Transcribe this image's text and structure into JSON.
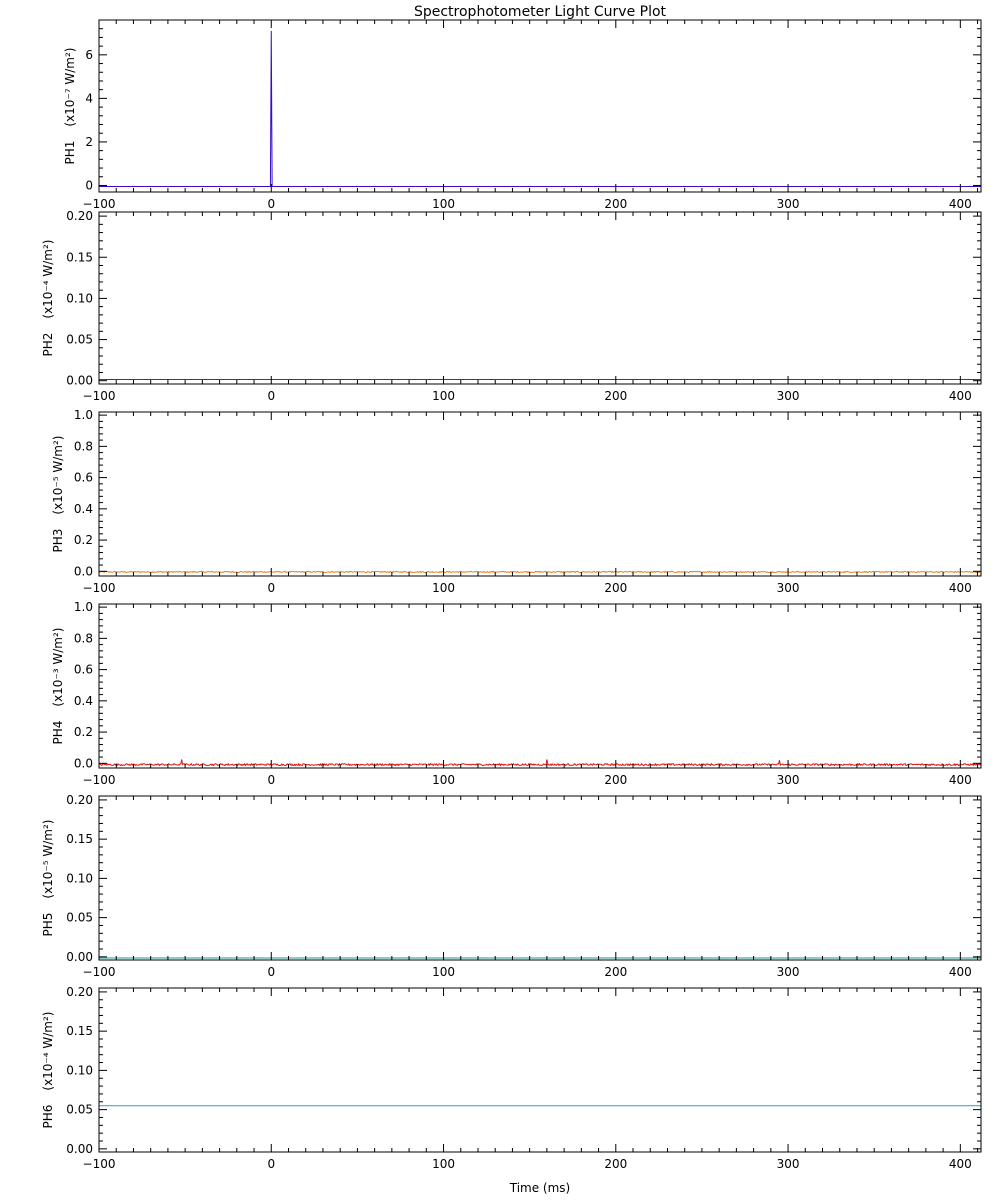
{
  "chart_data": [
    {
      "type": "line",
      "title": "Spectrophotometer Light Curve Plot",
      "panel": "PH1",
      "ylabel_name": "PH1",
      "ylabel_unit": "(x10⁻⁷ W/m²)",
      "xlabel": "",
      "xlim": [
        -100,
        412
      ],
      "ylim": [
        -0.3,
        7.6
      ],
      "x_ticks": [
        -100,
        0,
        100,
        200,
        300,
        400
      ],
      "x_tick_labels": [
        "−100",
        "0",
        "100",
        "200",
        "300",
        "400"
      ],
      "y_ticks": [
        0,
        2,
        4,
        6
      ],
      "y_tick_labels": [
        "0",
        "2",
        "4",
        "6"
      ],
      "color": "#3a0ac8",
      "baseline": -0.05,
      "spikes": [
        {
          "x": 0,
          "y": 7.1
        }
      ],
      "noise": 0
    },
    {
      "type": "line",
      "panel": "PH2",
      "ylabel_name": "PH2",
      "ylabel_unit": "(x10⁻⁴ W/m²)",
      "xlabel": "",
      "xlim": [
        -100,
        412
      ],
      "ylim": [
        -0.004,
        0.205
      ],
      "x_ticks": [
        -100,
        0,
        100,
        200,
        300,
        400
      ],
      "x_tick_labels": [
        "−100",
        "0",
        "100",
        "200",
        "300",
        "400"
      ],
      "y_ticks": [
        0,
        0.05,
        0.1,
        0.15,
        0.2
      ],
      "y_tick_labels": [
        "0.00",
        "0.05",
        "0.10",
        "0.15",
        "0.20"
      ],
      "color": "#0d4f7a",
      "baseline": 0.0015,
      "spikes": [],
      "noise": 0
    },
    {
      "type": "line",
      "panel": "PH3",
      "ylabel_name": "PH3",
      "ylabel_unit": "(x10⁻⁵ W/m²)",
      "xlabel": "",
      "xlim": [
        -100,
        412
      ],
      "ylim": [
        -0.03,
        1.02
      ],
      "x_ticks": [
        -100,
        0,
        100,
        200,
        300,
        400
      ],
      "x_tick_labels": [
        "−100",
        "0",
        "100",
        "200",
        "300",
        "400"
      ],
      "y_ticks": [
        0,
        0.2,
        0.4,
        0.6,
        0.8,
        1.0
      ],
      "y_tick_labels": [
        "0.0",
        "0.2",
        "0.4",
        "0.6",
        "0.8",
        "1.0"
      ],
      "color": "#e8821e",
      "baseline": -0.005,
      "spikes": [],
      "noise": 0.008
    },
    {
      "type": "line",
      "panel": "PH4",
      "ylabel_name": "PH4",
      "ylabel_unit": "(x10⁻³ W/m²)",
      "xlabel": "",
      "xlim": [
        -100,
        412
      ],
      "ylim": [
        -0.03,
        1.02
      ],
      "x_ticks": [
        -100,
        0,
        100,
        200,
        300,
        400
      ],
      "x_tick_labels": [
        "−100",
        "0",
        "100",
        "200",
        "300",
        "400"
      ],
      "y_ticks": [
        0,
        0.2,
        0.4,
        0.6,
        0.8,
        1.0
      ],
      "y_tick_labels": [
        "0.0",
        "0.2",
        "0.4",
        "0.6",
        "0.8",
        "1.0"
      ],
      "color": "#e01010",
      "baseline": -0.01,
      "spikes": [
        {
          "x": -52,
          "y": 0.025
        },
        {
          "x": 160,
          "y": 0.025
        },
        {
          "x": 295,
          "y": 0.02
        }
      ],
      "noise": 0.012
    },
    {
      "type": "line",
      "panel": "PH5",
      "ylabel_name": "PH5",
      "ylabel_unit": "(x10⁻⁵ W/m²)",
      "xlabel": "",
      "xlim": [
        -100,
        412
      ],
      "ylim": [
        -0.004,
        0.205
      ],
      "x_ticks": [
        -100,
        0,
        100,
        200,
        300,
        400
      ],
      "x_tick_labels": [
        "−100",
        "0",
        "100",
        "200",
        "300",
        "400"
      ],
      "y_ticks": [
        0,
        0.05,
        0.1,
        0.15,
        0.2
      ],
      "y_tick_labels": [
        "0.00",
        "0.05",
        "0.10",
        "0.15",
        "0.20"
      ],
      "color": "#1a9a8a",
      "baseline": -0.0015,
      "spikes": [],
      "noise": 0
    },
    {
      "type": "line",
      "panel": "PH6",
      "ylabel_name": "PH6",
      "ylabel_unit": "(x10⁻⁴ W/m²)",
      "xlabel": "Time (ms)",
      "xlim": [
        -100,
        412
      ],
      "ylim": [
        -0.004,
        0.205
      ],
      "x_ticks": [
        -100,
        0,
        100,
        200,
        300,
        400
      ],
      "x_tick_labels": [
        "−100",
        "0",
        "100",
        "200",
        "300",
        "400"
      ],
      "y_ticks": [
        0,
        0.05,
        0.1,
        0.15,
        0.2
      ],
      "y_tick_labels": [
        "0.00",
        "0.05",
        "0.10",
        "0.15",
        "0.20"
      ],
      "color": "#2a9ad8",
      "baseline": 0.055,
      "spikes": [],
      "noise": 0
    }
  ]
}
